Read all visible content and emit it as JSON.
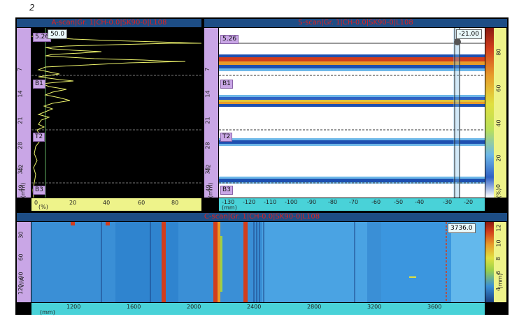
{
  "page_number": "2",
  "ascan": {
    "title": "A-scan|Gr. 1|CH-0.0|SK90-0|L108",
    "readout": "50.0",
    "depth_ticks": [
      "7",
      "14",
      "21",
      "28",
      "35",
      "42",
      "49"
    ],
    "depth_unit": "(mm)",
    "amp_ticks": [
      "0",
      "20",
      "40",
      "60",
      "80"
    ],
    "amp_unit": "(%)",
    "gates": [
      {
        "label": "5.26"
      },
      {
        "label": "B1"
      },
      {
        "label": "T2"
      },
      {
        "label": "B3"
      }
    ]
  },
  "sscan": {
    "title": "S-scan|Gr. 1|CH-0.0|SK90-0|L108",
    "readout": "-21.00",
    "depth_ticks": [
      "7",
      "14",
      "21",
      "28",
      "35",
      "42",
      "49"
    ],
    "depth_unit": "(mm)",
    "x_ticks": [
      "-130",
      "-120",
      "-110",
      "-100",
      "-90",
      "-80",
      "-70",
      "-60",
      "-50",
      "-40",
      "-30",
      "-20"
    ],
    "x_unit": "(mm)",
    "gates": [
      {
        "label": "5.26"
      },
      {
        "label": "B1"
      },
      {
        "label": "T2"
      },
      {
        "label": "B3"
      }
    ],
    "color_scale_ticks": [
      "0",
      "20",
      "40",
      "60",
      "80"
    ],
    "color_scale_unit": "(%)"
  },
  "cscan": {
    "title": "C-scan|Gr. 1|CH-0.0|SK90-0|L108",
    "readout": "3736.0",
    "y_ticks": [
      "30",
      "60",
      "90",
      "120"
    ],
    "y_unit": "VPA",
    "x_ticks": [
      "1200",
      "1600",
      "2000",
      "2400",
      "2800",
      "3200",
      "3600"
    ],
    "x_unit": "(mm)",
    "color_scale_ticks": [
      "4",
      "6",
      "8",
      "10",
      "12"
    ],
    "color_scale_unit": "(mm)"
  },
  "colors": {
    "title_bar": "#1d4d85",
    "title_text": "#e02020",
    "ascan_trace": "#eaf06a",
    "gate_ruler": "#c9a6e6",
    "amp_ruler": "#eef38a",
    "pos_ruler": "#49d2d8"
  }
}
